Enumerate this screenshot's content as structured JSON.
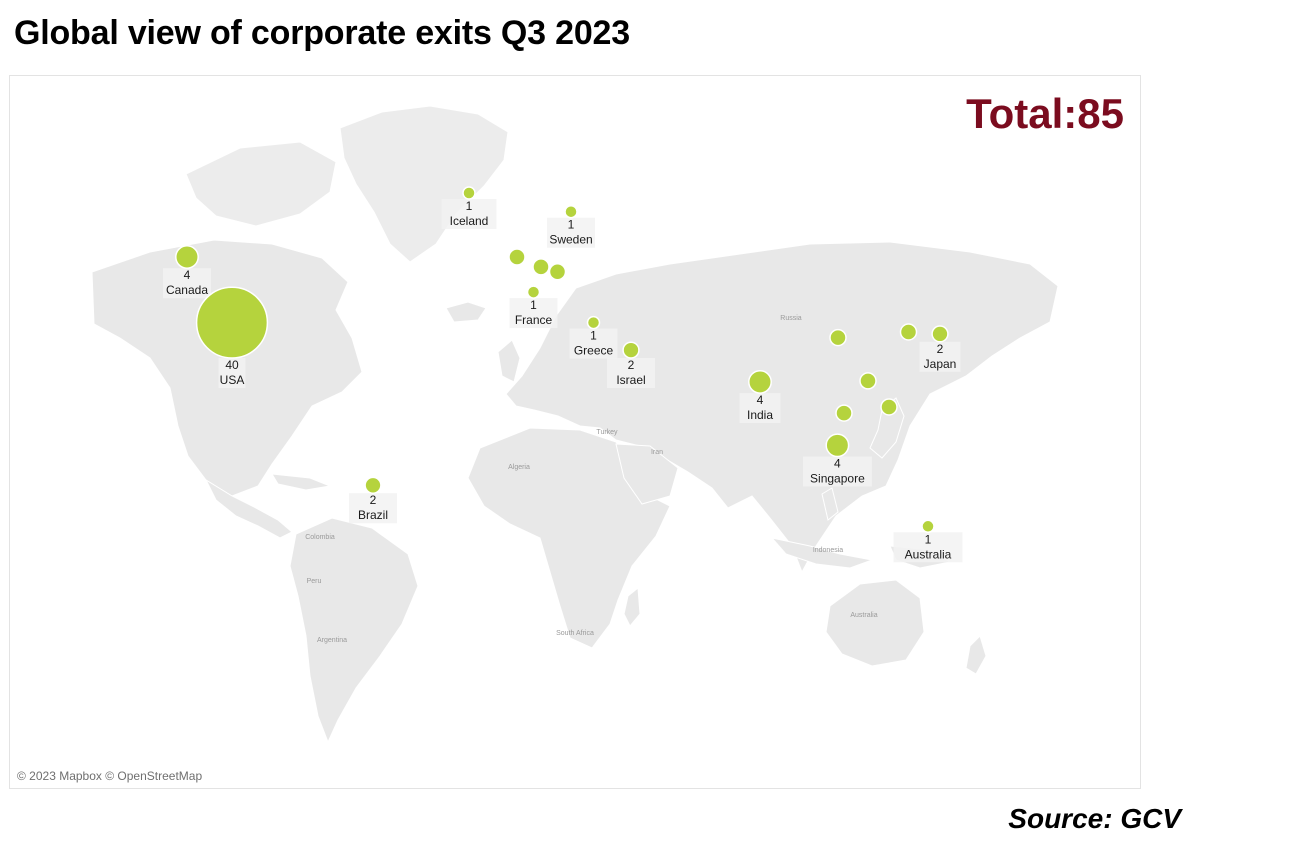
{
  "title": "Global view of corporate exits Q3 2023",
  "total": "Total:85",
  "attribution": "© 2023 Mapbox © OpenStreetMap",
  "source": "Source: GCV",
  "colors": {
    "bubble": "#b5d33d",
    "total": "#7b0c1f",
    "land": "#e8e8e8"
  },
  "basemap_place_names": [
    "Russia",
    "Turkey",
    "Algeria",
    "Iran",
    "Colombia",
    "Peru",
    "Argentina",
    "South Africa",
    "Australia",
    "Indonesia"
  ],
  "chart_data": {
    "type": "bubble-map",
    "points": [
      {
        "country": "USA",
        "value": 40,
        "lon": -98,
        "lat": 39,
        "labeled": true
      },
      {
        "country": "Canada",
        "value": 4,
        "lon": -113,
        "lat": 54,
        "labeled": true
      },
      {
        "country": "Iceland",
        "value": 1,
        "lon": -19,
        "lat": 64.8,
        "labeled": true
      },
      {
        "country": "Sweden",
        "value": 1,
        "lon": 15,
        "lat": 62,
        "labeled": true
      },
      {
        "country": "France",
        "value": 1,
        "lon": 2.5,
        "lat": 46.5,
        "labeled": true
      },
      {
        "country": "Greece",
        "value": 1,
        "lon": 22.5,
        "lat": 39,
        "labeled": true
      },
      {
        "country": "Israel",
        "value": 2,
        "lon": 35,
        "lat": 31.5,
        "labeled": true
      },
      {
        "country": "Japan",
        "value": 2,
        "lon": 138,
        "lat": 36,
        "labeled": true
      },
      {
        "country": "India",
        "value": 4,
        "lon": 78,
        "lat": 22,
        "labeled": true
      },
      {
        "country": "Singapore",
        "value": 4,
        "lon": 103.8,
        "lat": 1.3,
        "labeled": true
      },
      {
        "country": "Brazil",
        "value": 2,
        "lon": -51,
        "lat": -12,
        "labeled": true
      },
      {
        "country": "Australia",
        "value": 1,
        "lon": 134,
        "lat": -25,
        "labeled": true
      },
      {
        "country": "",
        "value": null,
        "lon": -3,
        "lat": 54,
        "labeled": false
      },
      {
        "country": "",
        "value": null,
        "lon": 5,
        "lat": 52,
        "labeled": false
      },
      {
        "country": "",
        "value": null,
        "lon": 10.5,
        "lat": 51,
        "labeled": false
      },
      {
        "country": "",
        "value": null,
        "lon": 104,
        "lat": 35,
        "labeled": false
      },
      {
        "country": "",
        "value": null,
        "lon": 127.5,
        "lat": 36.5,
        "labeled": false
      },
      {
        "country": "",
        "value": null,
        "lon": 114,
        "lat": 22.3,
        "labeled": false
      },
      {
        "country": "",
        "value": null,
        "lon": 106,
        "lat": 12,
        "labeled": false
      },
      {
        "country": "",
        "value": null,
        "lon": 121,
        "lat": 14,
        "labeled": false
      }
    ]
  }
}
